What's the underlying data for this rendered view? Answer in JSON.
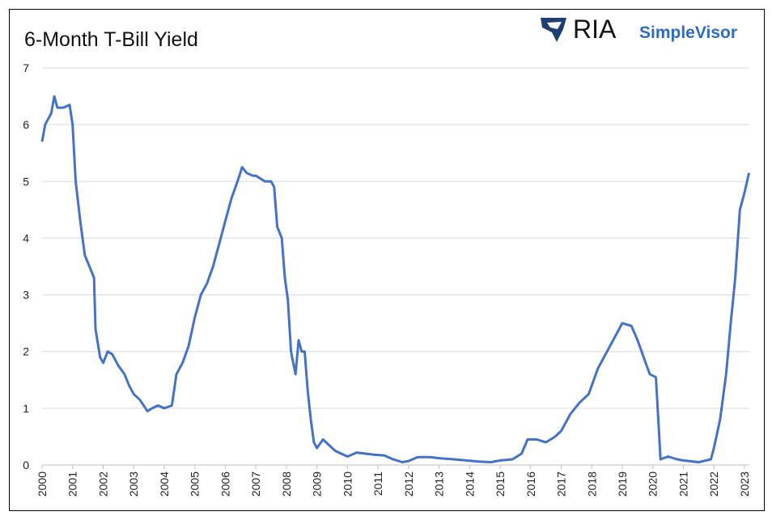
{
  "chart_data": {
    "type": "line",
    "title": "6-Month T-Bill Yield",
    "logo": {
      "brand": "RIA",
      "product": "SimpleVisor"
    },
    "color": "#4472c4",
    "grid": true,
    "x": [
      2000.0,
      2000.1,
      2000.3,
      2000.4,
      2000.5,
      2000.7,
      2000.9,
      2001.0,
      2001.1,
      2001.25,
      2001.4,
      2001.55,
      2001.7,
      2001.75,
      2001.9,
      2002.0,
      2002.15,
      2002.3,
      2002.5,
      2002.7,
      2002.85,
      2003.0,
      2003.2,
      2003.45,
      2003.6,
      2003.8,
      2004.0,
      2004.25,
      2004.4,
      2004.6,
      2004.8,
      2005.0,
      2005.2,
      2005.4,
      2005.6,
      2005.8,
      2006.0,
      2006.2,
      2006.4,
      2006.55,
      2006.7,
      2006.9,
      2007.0,
      2007.3,
      2007.5,
      2007.6,
      2007.7,
      2007.85,
      2007.95,
      2008.05,
      2008.15,
      2008.3,
      2008.4,
      2008.5,
      2008.6,
      2008.7,
      2008.8,
      2008.9,
      2009.0,
      2009.2,
      2009.4,
      2009.6,
      2009.8,
      2010.0,
      2010.3,
      2010.6,
      2010.9,
      2011.2,
      2011.5,
      2011.8,
      2012.0,
      2012.3,
      2012.7,
      2013.0,
      2013.5,
      2013.9,
      2014.3,
      2014.7,
      2015.0,
      2015.4,
      2015.7,
      2015.9,
      2016.2,
      2016.5,
      2016.8,
      2017.0,
      2017.3,
      2017.6,
      2017.9,
      2018.2,
      2018.5,
      2018.8,
      2019.0,
      2019.3,
      2019.5,
      2019.7,
      2019.9,
      2020.1,
      2020.2,
      2020.25,
      2020.5,
      2020.8,
      2021.0,
      2021.5,
      2021.9,
      2022.0,
      2022.2,
      2022.4,
      2022.55,
      2022.7,
      2022.85,
      2023.0,
      2023.15
    ],
    "values": [
      5.7,
      6.0,
      6.2,
      6.5,
      6.3,
      6.3,
      6.35,
      6.0,
      5.0,
      4.3,
      3.7,
      3.5,
      3.3,
      2.4,
      1.9,
      1.8,
      2.0,
      1.95,
      1.75,
      1.6,
      1.4,
      1.25,
      1.15,
      0.95,
      1.0,
      1.05,
      1.0,
      1.05,
      1.6,
      1.8,
      2.1,
      2.6,
      3.0,
      3.2,
      3.5,
      3.9,
      4.3,
      4.7,
      5.0,
      5.25,
      5.15,
      5.1,
      5.1,
      5.0,
      5.0,
      4.9,
      4.2,
      4.0,
      3.3,
      2.9,
      2.0,
      1.6,
      2.2,
      2.0,
      2.0,
      1.3,
      0.8,
      0.4,
      0.3,
      0.45,
      0.35,
      0.25,
      0.2,
      0.15,
      0.22,
      0.2,
      0.18,
      0.17,
      0.1,
      0.05,
      0.07,
      0.14,
      0.14,
      0.12,
      0.1,
      0.08,
      0.06,
      0.05,
      0.08,
      0.1,
      0.2,
      0.45,
      0.45,
      0.4,
      0.5,
      0.6,
      0.9,
      1.1,
      1.25,
      1.7,
      2.0,
      2.3,
      2.5,
      2.45,
      2.2,
      1.9,
      1.6,
      1.55,
      0.6,
      0.1,
      0.15,
      0.1,
      0.08,
      0.05,
      0.1,
      0.3,
      0.8,
      1.6,
      2.5,
      3.3,
      4.5,
      4.8,
      5.15
    ],
    "xlim": [
      2000,
      2023.16
    ],
    "xticks": [
      2000,
      2001,
      2002,
      2003,
      2004,
      2005,
      2006,
      2007,
      2008,
      2009,
      2010,
      2011,
      2012,
      2013,
      2014,
      2015,
      2016,
      2017,
      2018,
      2019,
      2020,
      2021,
      2022,
      2023
    ],
    "ylim": [
      0,
      7
    ],
    "yticks": [
      0,
      1,
      2,
      3,
      4,
      5,
      6,
      7
    ]
  }
}
